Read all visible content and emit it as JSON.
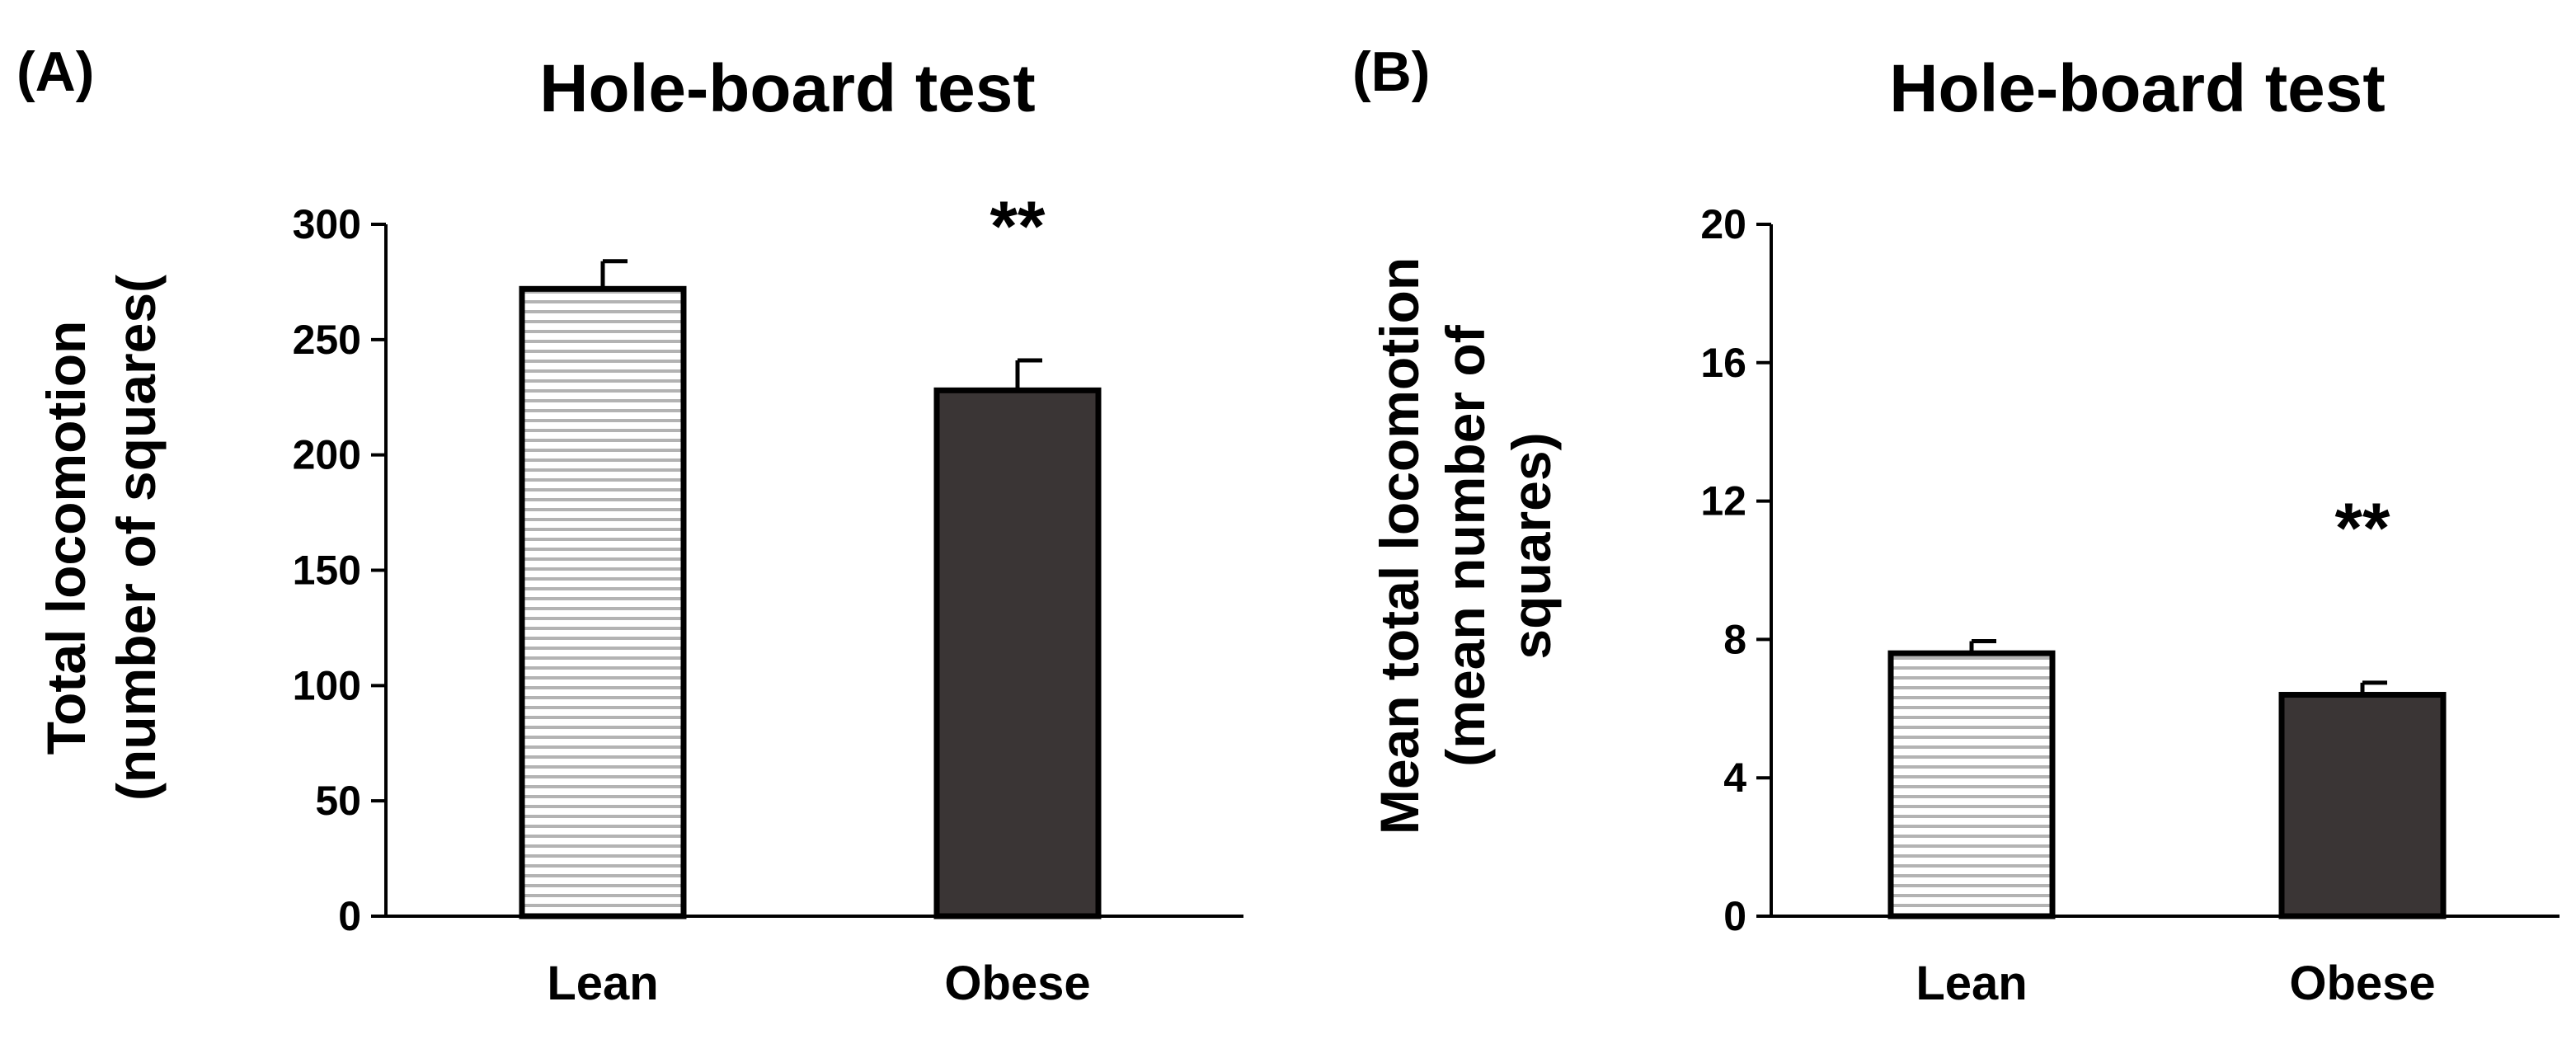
{
  "chart_data": [
    {
      "type": "bar",
      "panel_label": "(A)",
      "title": "Hole-board test",
      "ylabel_lines": [
        "Total locomotion",
        "(number of squares("
      ],
      "xlabel": "",
      "categories": [
        "Lean",
        "Obese"
      ],
      "values": [
        272,
        228
      ],
      "errors": [
        12,
        13
      ],
      "significance": [
        "",
        "**"
      ],
      "ylim": [
        0,
        300
      ],
      "yticks": [
        0,
        50,
        100,
        150,
        200,
        250,
        300
      ],
      "colors": [
        "#ffffff",
        "#3a3535"
      ],
      "hatched": [
        true,
        false
      ]
    },
    {
      "type": "bar",
      "panel_label": "(B)",
      "title": "Hole-board test",
      "ylabel_lines": [
        "Mean total locomotion",
        "(mean number of",
        "squares)"
      ],
      "xlabel": "",
      "categories": [
        "Lean",
        "Obese"
      ],
      "values": [
        7.6,
        6.4
      ],
      "errors": [
        0.35,
        0.35
      ],
      "significance": [
        "",
        "**"
      ],
      "ylim": [
        0,
        20
      ],
      "yticks": [
        0,
        4,
        8,
        12,
        16,
        20
      ],
      "colors": [
        "#ffffff",
        "#3a3535"
      ],
      "hatched": [
        true,
        false
      ]
    }
  ]
}
